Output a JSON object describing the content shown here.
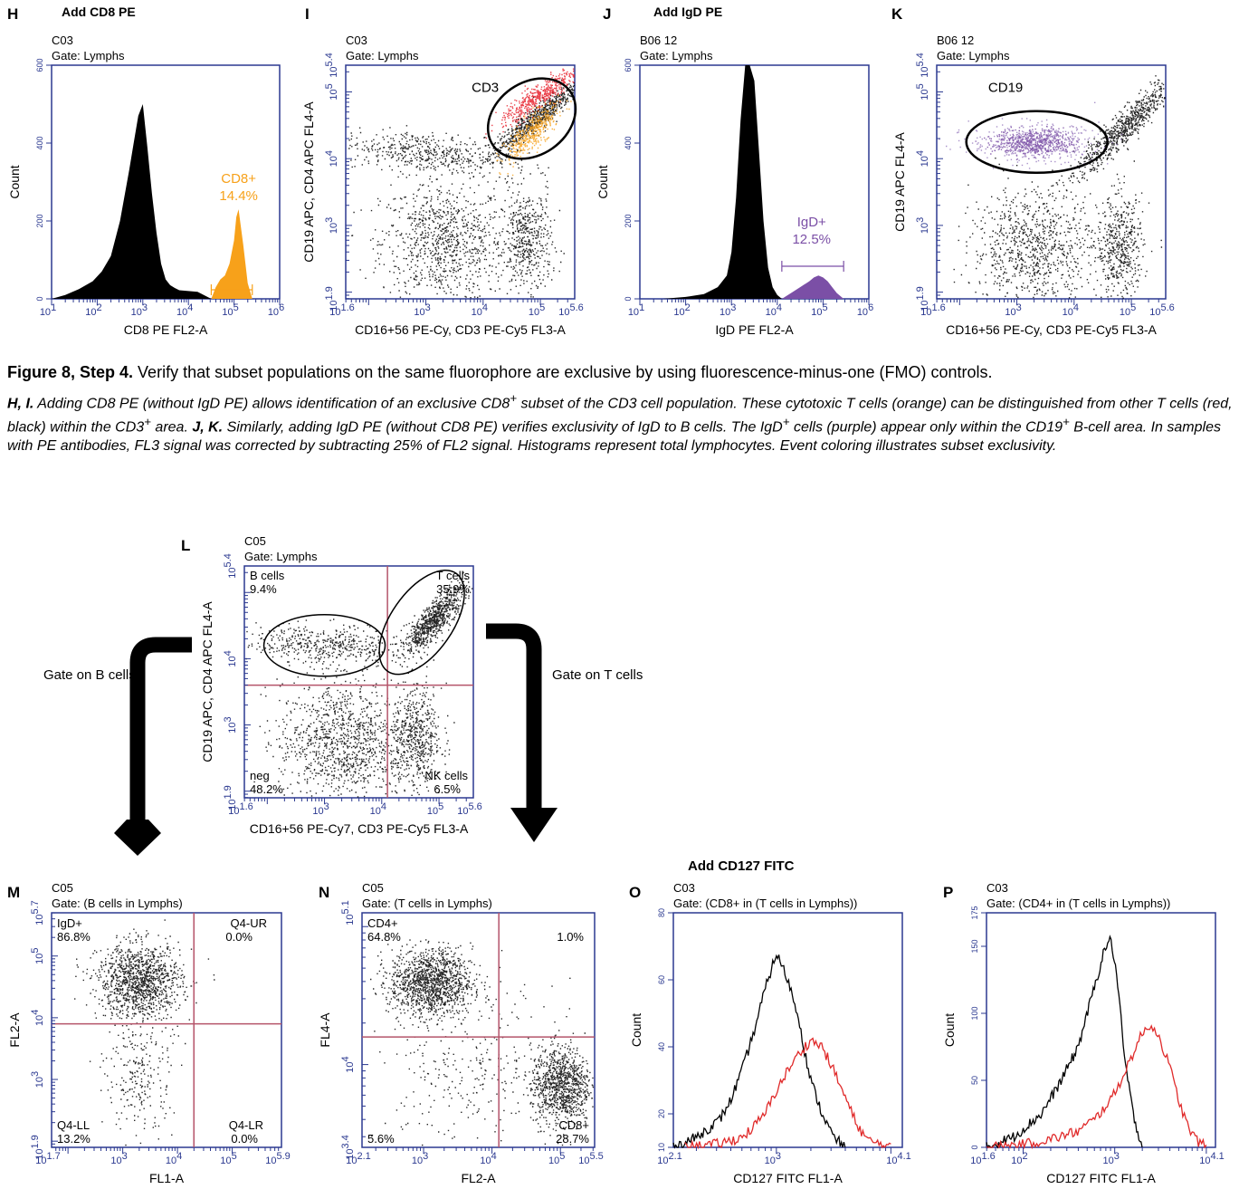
{
  "caption": {
    "title_bold": "Figure 8, Step 4.",
    "title_rest": " Verify that subset populations on the same fluorophore are exclusive by using fluorescence-minus-one (FMO) controls.",
    "p1_bold": "H, I.",
    "p1": " Adding CD8 PE (without IgD PE) allows identification of an exclusive CD8",
    "p1_sup": "+",
    "p1b": " subset of the CD3 cell population. These cytotoxic T cells (orange) can be distinguished from other T cells (red, black) within the CD3",
    "p1b_sup": "+",
    "p1c": " area. ",
    "p2_bold": "J, K.",
    "p2": " Similarly, adding IgD PE (without CD8 PE) verifies exclusivity of IgD to B cells. The IgD",
    "p2_sup": "+",
    "p2b": " cells (purple) appear only within the CD19",
    "p2b_sup": "+",
    "p2c": " B-cell area. In samples with PE antibodies, FL3 signal was corrected by subtracting 25% of FL2 signal. Histograms represent total lymphocytes. Event coloring illustrates subset exclusivity."
  },
  "flow": {
    "left": "Gate on B cells",
    "right": "Gate on T cells",
    "add_cd127": "Add CD127 FITC"
  },
  "colors": {
    "axis": "#2b3990",
    "tick_label": "#2b3990",
    "orange": "#f7a11a",
    "red": "#e8212d",
    "purple": "#7b4fa6",
    "quad": "#b5546a",
    "overlay_red": "#e02a2a"
  },
  "chart_data": [
    {
      "panel": "H",
      "type": "histogram",
      "header": "Add CD8 PE",
      "sample": "C03",
      "gate": "Gate: Lymphs",
      "xlabel": "CD8 PE FL2-A",
      "ylabel": "Count",
      "xlim": [
        1,
        6
      ],
      "xscale": "log",
      "x_ticks": [
        {
          "base": "10",
          "exp": "1"
        },
        {
          "base": "10",
          "exp": "2"
        },
        {
          "base": "10",
          "exp": "3"
        },
        {
          "base": "10",
          "exp": "4"
        },
        {
          "base": "10",
          "exp": "5"
        },
        {
          "base": "10",
          "exp": "6"
        }
      ],
      "ylim": [
        0,
        600
      ],
      "y_ticks": [
        "0",
        "200",
        "400",
        "600"
      ],
      "series": [
        {
          "fill": "#000000",
          "x": [
            1.0,
            1.3,
            1.6,
            1.9,
            2.1,
            2.3,
            2.5,
            2.7,
            2.8,
            2.9,
            3.0,
            3.1,
            3.2,
            3.3,
            3.4,
            3.5,
            3.6,
            3.7,
            3.8,
            4.0,
            4.2,
            4.5
          ],
          "y": [
            0,
            10,
            25,
            45,
            70,
            110,
            200,
            330,
            400,
            470,
            500,
            390,
            270,
            170,
            90,
            50,
            35,
            28,
            22,
            20,
            18,
            0
          ]
        },
        {
          "fill": "#f7a11a",
          "x": [
            4.5,
            4.6,
            4.7,
            4.8,
            4.9,
            5.0,
            5.05,
            5.1,
            5.2,
            5.3,
            5.4
          ],
          "y": [
            0,
            30,
            50,
            60,
            90,
            150,
            210,
            230,
            140,
            40,
            0
          ]
        }
      ],
      "gate_label": "CD8+",
      "gate_value": "14.4%"
    },
    {
      "panel": "I",
      "type": "scatter",
      "sample": "C03",
      "gate": "Gate: Lymphs",
      "xlabel": "CD16+56 PE-Cy, CD3 PE-Cy5 FL3-A",
      "ylabel": "CD19 APC, CD4 APC FL4-A",
      "xlim": [
        1.6,
        5.6
      ],
      "ylim": [
        1.9,
        5.4
      ],
      "x_ticks": [
        {
          "base": "10",
          "exp": "1.6"
        },
        {
          "base": "10",
          "exp": "3"
        },
        {
          "base": "10",
          "exp": "4"
        },
        {
          "base": "10",
          "exp": "5"
        },
        {
          "base": "10",
          "exp": "5.6"
        }
      ],
      "y_ticks": [
        {
          "base": "10",
          "exp": "1.9"
        },
        {
          "base": "10",
          "exp": "3"
        },
        {
          "base": "10",
          "exp": "4"
        },
        {
          "base": "10",
          "exp": "5"
        },
        {
          "base": "10",
          "exp": "5.4"
        }
      ],
      "gate_label": "CD3"
    },
    {
      "panel": "J",
      "type": "histogram",
      "header": "Add IgD PE",
      "sample": "B06 12",
      "gate": "Gate: Lymphs",
      "xlabel": "IgD PE FL2-A",
      "ylabel": "Count",
      "xlim": [
        1,
        6
      ],
      "xscale": "log",
      "x_ticks": [
        {
          "base": "10",
          "exp": "1"
        },
        {
          "base": "10",
          "exp": "2"
        },
        {
          "base": "10",
          "exp": "3"
        },
        {
          "base": "10",
          "exp": "4"
        },
        {
          "base": "10",
          "exp": "5"
        },
        {
          "base": "10",
          "exp": "6"
        }
      ],
      "ylim": [
        0,
        600
      ],
      "y_ticks": [
        "0",
        "200",
        "400",
        "600"
      ],
      "series": [
        {
          "fill": "#000000",
          "x": [
            1.5,
            2.0,
            2.4,
            2.7,
            2.9,
            3.0,
            3.1,
            3.2,
            3.3,
            3.4,
            3.5,
            3.6,
            3.7,
            3.8,
            3.9,
            4.0,
            4.1
          ],
          "y": [
            0,
            5,
            12,
            30,
            60,
            120,
            260,
            460,
            640,
            640,
            560,
            380,
            200,
            80,
            30,
            10,
            0
          ]
        },
        {
          "fill": "#7b4fa6",
          "x": [
            4.1,
            4.3,
            4.5,
            4.7,
            4.8,
            4.9,
            5.0,
            5.1,
            5.2,
            5.3,
            5.45
          ],
          "y": [
            0,
            15,
            30,
            45,
            55,
            60,
            55,
            45,
            30,
            15,
            0
          ]
        }
      ],
      "gate_label": "IgD+",
      "gate_value": "12.5%"
    },
    {
      "panel": "K",
      "type": "scatter",
      "sample": "B06 12",
      "gate": "Gate: Lymphs",
      "xlabel": "CD16+56 PE-Cy, CD3 PE-Cy5 FL3-A",
      "ylabel": "CD19 APC FL4-A",
      "xlim": [
        1.6,
        5.6
      ],
      "ylim": [
        1.9,
        5.4
      ],
      "x_ticks": [
        {
          "base": "10",
          "exp": "1.6"
        },
        {
          "base": "10",
          "exp": "3"
        },
        {
          "base": "10",
          "exp": "4"
        },
        {
          "base": "10",
          "exp": "5"
        },
        {
          "base": "10",
          "exp": "5.6"
        }
      ],
      "y_ticks": [
        {
          "base": "10",
          "exp": "1.9"
        },
        {
          "base": "10",
          "exp": "3"
        },
        {
          "base": "10",
          "exp": "4"
        },
        {
          "base": "10",
          "exp": "5"
        },
        {
          "base": "10",
          "exp": "5.4"
        }
      ],
      "gate_label": "CD19"
    },
    {
      "panel": "L",
      "type": "scatter",
      "sample": "C05",
      "gate": "Gate: Lymphs",
      "xlabel": "CD16+56 PE-Cy7, CD3 PE-Cy5 FL3-A",
      "ylabel": "CD19 APC, CD4 APC FL4-A",
      "xlim": [
        1.6,
        5.6
      ],
      "ylim": [
        1.9,
        5.4
      ],
      "x_ticks": [
        {
          "base": "10",
          "exp": "1.6"
        },
        {
          "base": "10",
          "exp": "3"
        },
        {
          "base": "10",
          "exp": "4"
        },
        {
          "base": "10",
          "exp": "5"
        },
        {
          "base": "10",
          "exp": "5.6"
        }
      ],
      "y_ticks": [
        {
          "base": "10",
          "exp": "1.9"
        },
        {
          "base": "10",
          "exp": "3"
        },
        {
          "base": "10",
          "exp": "4"
        },
        {
          "base": "10",
          "exp": "5.4"
        }
      ],
      "quadrants": [
        {
          "label": "B cells",
          "value": "9.4%",
          "pos": "top-left"
        },
        {
          "label": "T cells",
          "value": "35.9%",
          "pos": "top-right"
        },
        {
          "label": "neg",
          "value": "48.2%",
          "pos": "bottom-left"
        },
        {
          "label": "NK cells",
          "value": "6.5%",
          "pos": "bottom-right"
        }
      ]
    },
    {
      "panel": "M",
      "type": "scatter",
      "sample": "C05",
      "gate": "Gate: (B cells in Lymphs)",
      "xlabel": "FL1-A",
      "ylabel": "FL2-A",
      "xlim": [
        1.7,
        5.9
      ],
      "ylim": [
        1.9,
        5.7
      ],
      "x_ticks": [
        {
          "base": "10",
          "exp": "1.7"
        },
        {
          "base": "10",
          "exp": "3"
        },
        {
          "base": "10",
          "exp": "4"
        },
        {
          "base": "10",
          "exp": "5"
        },
        {
          "base": "10",
          "exp": "5.9"
        }
      ],
      "y_ticks": [
        {
          "base": "10",
          "exp": "1.9"
        },
        {
          "base": "10",
          "exp": "3"
        },
        {
          "base": "10",
          "exp": "4"
        },
        {
          "base": "10",
          "exp": "5"
        },
        {
          "base": "10",
          "exp": "5.7"
        }
      ],
      "quadrants": [
        {
          "label": "IgD+",
          "value": "86.8%",
          "pos": "top-left"
        },
        {
          "label": "Q4-UR",
          "value": "0.0%",
          "pos": "top-right"
        },
        {
          "label": "Q4-LL",
          "value": "13.2%",
          "pos": "bottom-left"
        },
        {
          "label": "Q4-LR",
          "value": "0.0%",
          "pos": "bottom-right"
        }
      ]
    },
    {
      "panel": "N",
      "type": "scatter",
      "sample": "C05",
      "gate": "Gate: (T cells in Lymphs)",
      "xlabel": "FL2-A",
      "ylabel": "FL4-A",
      "xlim": [
        2.1,
        5.5
      ],
      "ylim": [
        3.4,
        5.1
      ],
      "x_ticks": [
        {
          "base": "10",
          "exp": "2.1"
        },
        {
          "base": "10",
          "exp": "3"
        },
        {
          "base": "10",
          "exp": "4"
        },
        {
          "base": "10",
          "exp": "5"
        },
        {
          "base": "10",
          "exp": "5.5"
        }
      ],
      "y_ticks": [
        {
          "base": "10",
          "exp": "3.4"
        },
        {
          "base": "10",
          "exp": "4"
        },
        {
          "base": "10",
          "exp": "5.1"
        }
      ],
      "quadrants": [
        {
          "label": "CD4+",
          "value": "64.8%",
          "pos": "top-left"
        },
        {
          "label": "",
          "value": "1.0%",
          "pos": "top-right"
        },
        {
          "label": "",
          "value": "5.6%",
          "pos": "bottom-left"
        },
        {
          "label": "CD8+",
          "value": "28.7%",
          "pos": "bottom-right"
        }
      ]
    },
    {
      "panel": "O",
      "type": "histogram-overlay",
      "sample": "C03",
      "gate": "Gate: (CD8+ in (T cells in Lymphs))",
      "xlabel": "CD127 FITC FL1-A",
      "ylabel": "Count",
      "xlim": [
        2.1,
        4.1
      ],
      "ylim": [
        10,
        80
      ],
      "x_ticks": [
        {
          "base": "10",
          "exp": "2.1"
        },
        {
          "base": "10",
          "exp": "3"
        },
        {
          "base": "10",
          "exp": "4.1"
        }
      ],
      "y_ticks": [
        "10",
        "20",
        "40",
        "60",
        "80"
      ],
      "series": [
        {
          "stroke": "#000000",
          "x": [
            2.1,
            2.3,
            2.5,
            2.6,
            2.7,
            2.8,
            2.9,
            3.0,
            3.1,
            3.2,
            3.25,
            3.3,
            3.4,
            3.5,
            3.6
          ],
          "y": [
            10,
            13,
            18,
            24,
            33,
            44,
            57,
            68,
            60,
            48,
            38,
            30,
            20,
            13,
            10
          ]
        },
        {
          "stroke": "#e02a2a",
          "x": [
            2.2,
            2.5,
            2.7,
            2.8,
            2.9,
            3.0,
            3.1,
            3.2,
            3.3,
            3.4,
            3.5,
            3.6,
            3.7,
            3.8,
            3.9,
            4.0
          ],
          "y": [
            10,
            11,
            13,
            16,
            20,
            27,
            33,
            38,
            42,
            40,
            33,
            25,
            17,
            12,
            11,
            10
          ]
        }
      ]
    },
    {
      "panel": "P",
      "type": "histogram-overlay",
      "sample": "C03",
      "gate": "Gate: (CD4+ in (T cells in Lymphs))",
      "xlabel": "CD127 FITC FL1-A",
      "ylabel": "Count",
      "xlim": [
        1.6,
        4.1
      ],
      "ylim": [
        0,
        175
      ],
      "x_ticks": [
        {
          "base": "10",
          "exp": "1.6"
        },
        {
          "base": "10",
          "exp": "2"
        },
        {
          "base": "10",
          "exp": "3"
        },
        {
          "base": "10",
          "exp": "4.1"
        }
      ],
      "y_ticks": [
        "0",
        "50",
        "100",
        "150",
        "175"
      ],
      "series": [
        {
          "stroke": "#000000",
          "x": [
            1.6,
            1.9,
            2.2,
            2.4,
            2.6,
            2.7,
            2.8,
            2.9,
            2.95,
            3.0,
            3.05,
            3.1,
            3.2,
            3.3
          ],
          "y": [
            0,
            8,
            25,
            48,
            75,
            100,
            125,
            150,
            155,
            140,
            110,
            70,
            25,
            0
          ]
        },
        {
          "stroke": "#e02a2a",
          "x": [
            1.6,
            2.0,
            2.3,
            2.6,
            2.8,
            3.0,
            3.1,
            3.2,
            3.3,
            3.4,
            3.5,
            3.6,
            3.7,
            3.8,
            3.9,
            4.0
          ],
          "y": [
            0,
            2,
            6,
            12,
            22,
            40,
            55,
            70,
            85,
            92,
            80,
            60,
            35,
            15,
            5,
            0
          ]
        }
      ]
    }
  ]
}
